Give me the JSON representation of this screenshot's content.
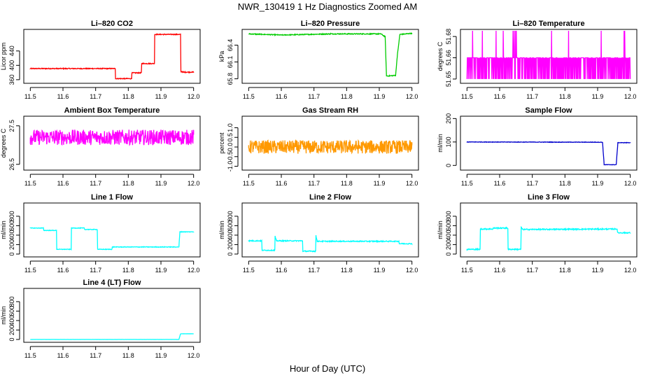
{
  "page": {
    "title": "NWR_130419  1 Hz Diagnostics Zoomed AM",
    "xlabel": "Hour of Day (UTC)"
  },
  "chart_data": [
    {
      "id": "co2",
      "type": "line",
      "title": "Li–820 CO2",
      "ylabel": "Licor ppm",
      "color": "#ff0000",
      "xlim": [
        11.48,
        12.02
      ],
      "ylim": [
        350,
        500
      ],
      "x_ticks": [
        "11.5",
        "11.6",
        "11.7",
        "11.8",
        "11.9",
        "12.0"
      ],
      "y_ticks": [
        360,
        400,
        440
      ],
      "y_tick_labels": [
        "360",
        "400",
        "440"
      ],
      "noise": 1.2,
      "x": [
        11.5,
        11.76,
        11.76,
        11.81,
        11.81,
        11.84,
        11.84,
        11.88,
        11.88,
        11.96,
        11.96,
        11.97,
        12.0
      ],
      "y": [
        391,
        391,
        363,
        363,
        379,
        379,
        405,
        405,
        486,
        486,
        383,
        381,
        381
      ]
    },
    {
      "id": "pressure",
      "type": "line",
      "title": "Li–820 Pressure",
      "ylabel": "kPa",
      "color": "#00cc00",
      "xlim": [
        11.48,
        12.02
      ],
      "ylim": [
        65.72,
        66.68
      ],
      "x_ticks": [
        "11.5",
        "11.6",
        "11.7",
        "11.8",
        "11.9",
        "12.0"
      ],
      "y_ticks": [
        65.8,
        66.1,
        66.4
      ],
      "y_tick_labels": [
        "65.8",
        "66.1",
        "66.4"
      ],
      "noise": 0.008,
      "x": [
        11.5,
        11.6,
        11.75,
        11.905,
        11.918,
        11.922,
        11.95,
        11.955,
        11.963,
        12.0
      ],
      "y": [
        66.6,
        66.58,
        66.6,
        66.6,
        66.55,
        65.85,
        65.86,
        66.2,
        66.59,
        66.61
      ]
    },
    {
      "id": "li820_temp",
      "type": "line",
      "title": "Li–820 Temperature",
      "ylabel": "degrees C",
      "color": "#ff00ff",
      "xlim": [
        11.48,
        12.02
      ],
      "ylim": [
        51.647,
        51.685
      ],
      "x_ticks": [
        "11.5",
        "11.6",
        "11.7",
        "11.8",
        "11.9",
        "12.0"
      ],
      "y_ticks": [
        51.65,
        51.665,
        51.68
      ],
      "y_tick_labels": [
        "51.65",
        "51.66",
        "51.68"
      ],
      "levels": [
        51.65,
        51.665,
        51.684
      ],
      "x": [
        11.5,
        12.0
      ],
      "y": [
        51.65,
        51.665
      ]
    },
    {
      "id": "box_temp",
      "type": "line",
      "title": "Ambient Box Temperature",
      "ylabel": "degrees C",
      "color": "#ff00ff",
      "xlim": [
        11.48,
        12.02
      ],
      "ylim": [
        26.35,
        27.75
      ],
      "x_ticks": [
        "11.5",
        "11.6",
        "11.7",
        "11.8",
        "11.9",
        "12.0"
      ],
      "y_ticks": [
        26.5,
        27.5
      ],
      "y_tick_labels": [
        "26.5",
        "27.5"
      ],
      "noise": 0.2,
      "x": [
        11.5,
        12.0
      ],
      "y": [
        27.2,
        27.2
      ]
    },
    {
      "id": "rh",
      "type": "line",
      "title": "Gas Stream RH",
      "ylabel": "percent",
      "color": "#ff9900",
      "xlim": [
        11.48,
        12.02
      ],
      "ylim": [
        -1.2,
        1.6
      ],
      "x_ticks": [
        "11.5",
        "11.6",
        "11.7",
        "11.8",
        "11.9",
        "12.0"
      ],
      "y_ticks": [
        -1.0,
        -0.5,
        0.0,
        0.5,
        1.0
      ],
      "y_tick_labels": [
        "-1.0",
        "-0.5",
        "0.0",
        "0.5",
        "1.0"
      ],
      "noise": 0.35,
      "x": [
        11.5,
        12.0
      ],
      "y": [
        0.0,
        0.0
      ]
    },
    {
      "id": "sample_flow",
      "type": "line",
      "title": "Sample Flow",
      "ylabel": "ml/min",
      "color": "#0000cc",
      "xlim": [
        11.48,
        12.02
      ],
      "ylim": [
        -20,
        210
      ],
      "x_ticks": [
        "11.5",
        "11.6",
        "11.7",
        "11.8",
        "11.9",
        "12.0"
      ],
      "y_ticks": [
        0,
        100,
        200
      ],
      "y_tick_labels": [
        "0",
        "100",
        "200"
      ],
      "noise": 1.0,
      "x": [
        11.5,
        11.915,
        11.92,
        11.957,
        11.962,
        12.0
      ],
      "y": [
        100,
        99,
        3,
        3,
        97,
        97
      ]
    },
    {
      "id": "line1",
      "type": "line",
      "title": "Line 1 Flow",
      "ylabel": "ml/min",
      "color": "#00ffff",
      "xlim": [
        11.48,
        12.02
      ],
      "ylim": [
        -60,
        1080
      ],
      "x_ticks": [
        "11.5",
        "11.6",
        "11.7",
        "11.8",
        "11.9",
        "12.0"
      ],
      "y_ticks": [
        0,
        200,
        400,
        600,
        800
      ],
      "y_tick_labels": [
        "0",
        "200",
        "400",
        "600",
        "800"
      ],
      "noise": 6,
      "x": [
        11.5,
        11.54,
        11.54,
        11.58,
        11.58,
        11.625,
        11.625,
        11.665,
        11.665,
        11.705,
        11.705,
        11.75,
        11.75,
        11.955,
        11.958,
        12.0
      ],
      "y": [
        550,
        550,
        500,
        500,
        100,
        100,
        550,
        550,
        520,
        520,
        100,
        100,
        150,
        150,
        470,
        470
      ]
    },
    {
      "id": "line2",
      "type": "line",
      "title": "Line 2 Flow",
      "ylabel": "ml/min",
      "color": "#00ffff",
      "xlim": [
        11.48,
        12.02
      ],
      "ylim": [
        -60,
        1080
      ],
      "x_ticks": [
        "11.5",
        "11.6",
        "11.7",
        "11.8",
        "11.9",
        "12.0"
      ],
      "y_ticks": [
        0,
        200,
        400,
        600,
        800
      ],
      "y_tick_labels": [
        "0",
        "200",
        "400",
        "600",
        "800"
      ],
      "noise": 10,
      "x": [
        11.5,
        11.54,
        11.54,
        11.58,
        11.58,
        11.585,
        11.665,
        11.665,
        11.705,
        11.705,
        11.71,
        11.96,
        11.96,
        12.0
      ],
      "y": [
        280,
        280,
        80,
        80,
        400,
        280,
        280,
        60,
        60,
        420,
        270,
        270,
        220,
        220
      ]
    },
    {
      "id": "line3",
      "type": "line",
      "title": "Line 3 Flow",
      "ylabel": "ml/min",
      "color": "#00ffff",
      "xlim": [
        11.48,
        12.02
      ],
      "ylim": [
        -60,
        1080
      ],
      "x_ticks": [
        "11.5",
        "11.6",
        "11.7",
        "11.8",
        "11.9",
        "12.0"
      ],
      "y_ticks": [
        0,
        200,
        400,
        600,
        800
      ],
      "y_tick_labels": [
        "0",
        "200",
        "400",
        "600",
        "800"
      ],
      "noise": 12,
      "x": [
        11.5,
        11.54,
        11.54,
        11.58,
        11.58,
        11.625,
        11.625,
        11.665,
        11.665,
        11.67,
        11.96,
        11.96,
        12.0
      ],
      "y": [
        100,
        100,
        530,
        530,
        550,
        550,
        100,
        100,
        580,
        520,
        530,
        450,
        450
      ]
    },
    {
      "id": "line4",
      "type": "line",
      "title": "Line 4 (LT) Flow",
      "ylabel": "ml/min",
      "color": "#00ffff",
      "xlim": [
        11.48,
        12.02
      ],
      "ylim": [
        -60,
        1080
      ],
      "x_ticks": [
        "11.5",
        "11.6",
        "11.7",
        "11.8",
        "11.9",
        "12.0"
      ],
      "y_ticks": [
        0,
        200,
        400,
        600,
        800
      ],
      "y_tick_labels": [
        "0",
        "200",
        "400",
        "600",
        "800"
      ],
      "noise": 1,
      "x": [
        11.5,
        11.955,
        11.96,
        12.0
      ],
      "y": [
        0,
        0,
        120,
        120
      ]
    }
  ]
}
